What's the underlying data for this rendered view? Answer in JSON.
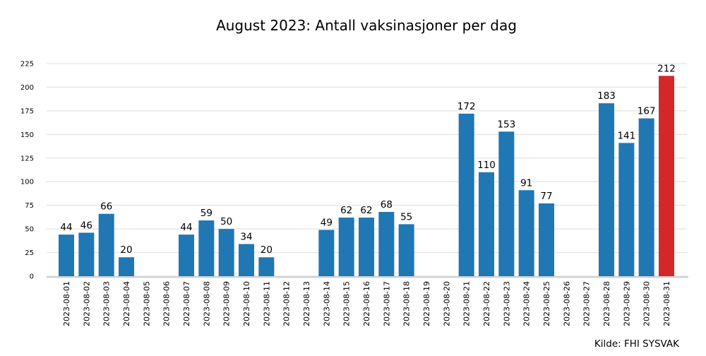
{
  "chart_data": {
    "type": "bar",
    "title": "August 2023: Antall vaksinasjoner per dag",
    "source": "Kilde: FHI SYSVAK",
    "xlabel": "",
    "ylabel": "",
    "ylim": [
      0,
      230
    ],
    "yticks": [
      0,
      25,
      50,
      75,
      100,
      125,
      150,
      175,
      200,
      225
    ],
    "grid": "horizontal",
    "colors": {
      "default": "#1f77b4",
      "highlight": "#d62728",
      "grid": "#e8e8e8",
      "axis": "#d3d3d3"
    },
    "highlight_category": "2023-08-31",
    "categories": [
      "2023-08-01",
      "2023-08-02",
      "2023-08-03",
      "2023-08-04",
      "2023-08-05",
      "2023-08-06",
      "2023-08-07",
      "2023-08-08",
      "2023-08-09",
      "2023-08-10",
      "2023-08-11",
      "2023-08-12",
      "2023-08-13",
      "2023-08-14",
      "2023-08-15",
      "2023-08-16",
      "2023-08-17",
      "2023-08-18",
      "2023-08-19",
      "2023-08-20",
      "2023-08-21",
      "2023-08-22",
      "2023-08-23",
      "2023-08-24",
      "2023-08-25",
      "2023-08-26",
      "2023-08-27",
      "2023-08-28",
      "2023-08-29",
      "2023-08-30",
      "2023-08-31"
    ],
    "values": [
      44,
      46,
      66,
      20,
      null,
      null,
      44,
      59,
      50,
      34,
      20,
      null,
      null,
      49,
      62,
      62,
      68,
      55,
      null,
      null,
      172,
      110,
      153,
      91,
      77,
      null,
      null,
      183,
      141,
      167,
      212
    ]
  }
}
